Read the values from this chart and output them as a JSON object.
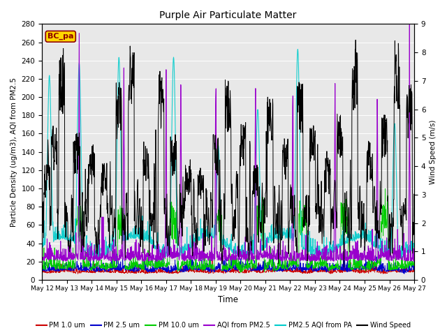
{
  "title": "Purple Air Particulate Matter",
  "xlabel": "Time",
  "ylabel_left": "Particle Density (ug/m3), AQI from PM2.5",
  "ylabel_right": "Wind Speed (m/s)",
  "ylim_left": [
    0,
    280
  ],
  "ylim_right": [
    0.0,
    9.0
  ],
  "yticks_left": [
    0,
    20,
    40,
    60,
    80,
    100,
    120,
    140,
    160,
    180,
    200,
    220,
    240,
    260,
    280
  ],
  "yticks_right": [
    0.0,
    1.0,
    2.0,
    3.0,
    4.0,
    5.0,
    6.0,
    7.0,
    8.0,
    9.0
  ],
  "xtick_labels": [
    "May 12",
    "May 13",
    "May 14",
    "May 15",
    "May 16",
    "May 17",
    "May 18",
    "May 19",
    "May 20",
    "May 21",
    "May 22",
    "May 23",
    "May 24",
    "May 25",
    "May 26",
    "May 27"
  ],
  "annotation_text": "BC_pa",
  "annotation_color": "#8B0000",
  "annotation_bg": "#FFD700",
  "colors": {
    "pm1": "#CC0000",
    "pm25": "#0000CC",
    "pm10": "#00CC00",
    "aqi_pm25": "#9900CC",
    "aqi_pa": "#00CCCC",
    "wind": "#000000"
  },
  "legend_labels": [
    "PM 1.0 um",
    "PM 2.5 um",
    "PM 10.0 um",
    "AQI from PM2.5",
    "PM2.5 AQI from PA",
    "Wind Speed"
  ],
  "n_points": 1500,
  "n_days": 15,
  "background_color": "#E8E8E8"
}
